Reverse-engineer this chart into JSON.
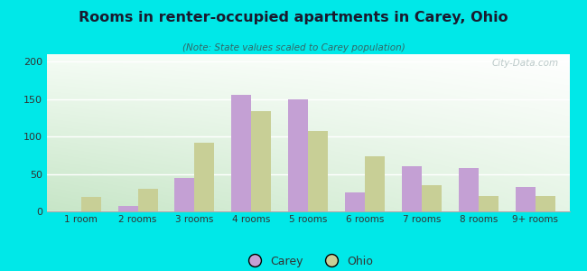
{
  "title": "Rooms in renter-occupied apartments in Carey, Ohio",
  "subtitle": "(Note: State values scaled to Carey population)",
  "categories": [
    "1 room",
    "2 rooms",
    "3 rooms",
    "4 rooms",
    "5 rooms",
    "6 rooms",
    "7 rooms",
    "8 rooms",
    "9+ rooms"
  ],
  "carey_values": [
    0,
    7,
    45,
    156,
    150,
    25,
    60,
    58,
    33
  ],
  "ohio_values": [
    19,
    30,
    92,
    134,
    108,
    74,
    35,
    20,
    20
  ],
  "carey_color": "#c4a0d4",
  "ohio_color": "#c8cf96",
  "background_outer": "#00e8e8",
  "title_color": "#1a1a2e",
  "subtitle_color": "#336666",
  "ylim": [
    0,
    210
  ],
  "yticks": [
    0,
    50,
    100,
    150,
    200
  ],
  "bar_width": 0.35,
  "legend_labels": [
    "Carey",
    "Ohio"
  ],
  "watermark": "City-Data.com"
}
